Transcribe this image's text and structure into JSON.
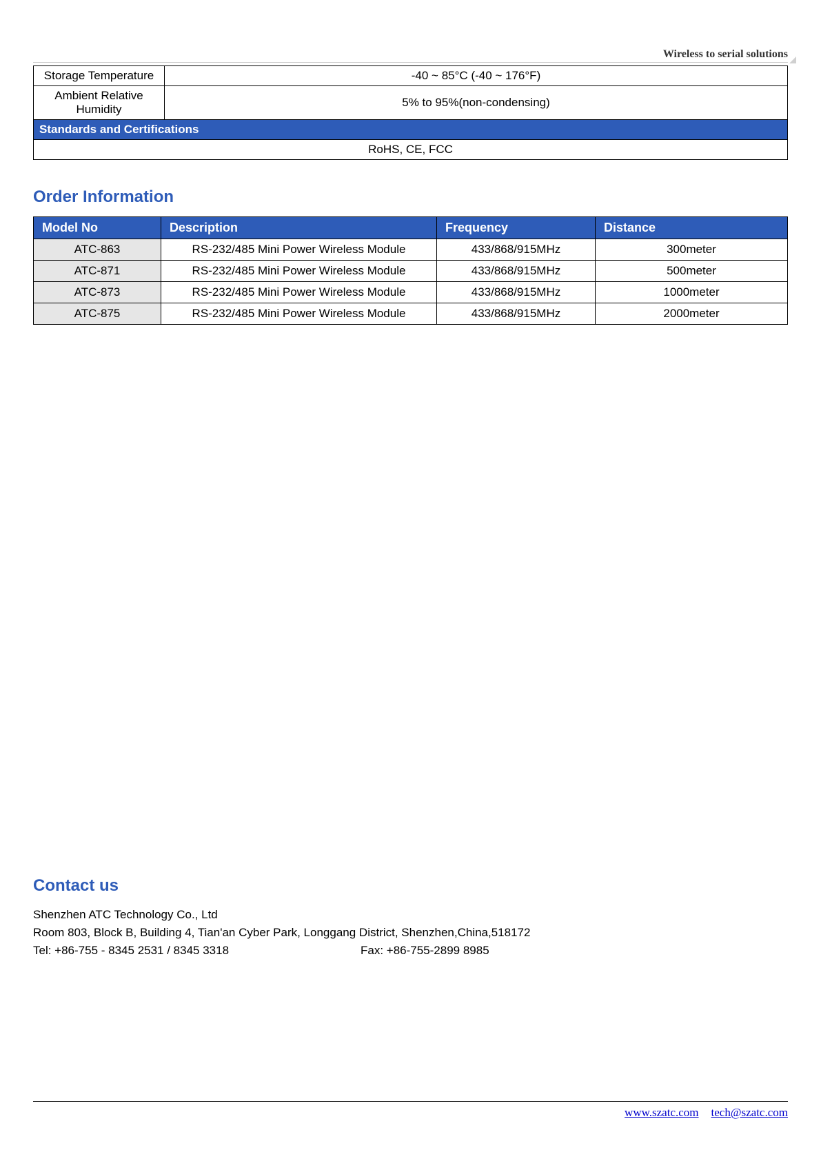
{
  "header": {
    "tagline": "Wireless to serial solutions"
  },
  "specTable": {
    "rows": [
      {
        "label": "Storage Temperature",
        "value": "-40 ~ 85°C (-40 ~ 176°F)"
      },
      {
        "label": "Ambient Relative Humidity",
        "value": "5% to 95%(non-condensing)"
      }
    ],
    "sectionHeader": "Standards and Certifications",
    "sectionValue": "RoHS, CE, FCC"
  },
  "orderSection": {
    "title": "Order Information",
    "columns": [
      "Model No",
      "Description",
      "Frequency",
      "Distance"
    ],
    "rows": [
      [
        "ATC-863",
        "RS-232/485 Mini Power Wireless Module",
        "433/868/915MHz",
        "300meter"
      ],
      [
        "ATC-871",
        "RS-232/485 Mini Power Wireless Module",
        "433/868/915MHz",
        "500meter"
      ],
      [
        "ATC-873",
        "RS-232/485 Mini Power Wireless Module",
        "433/868/915MHz",
        "1000meter"
      ],
      [
        "ATC-875",
        "RS-232/485 Mini Power Wireless Module",
        "433/868/915MHz",
        "2000meter"
      ]
    ]
  },
  "contact": {
    "title": "Contact us",
    "company": "Shenzhen ATC Technology Co., Ltd",
    "address": "Room 803, Block B, Building 4, Tian'an Cyber Park, Longgang District, Shenzhen,China,518172",
    "tel": "Tel: +86-755 - 8345 2531 / 8345 3318",
    "fax": "Fax: +86-755-2899 8985"
  },
  "footer": {
    "website": "www.szatc.com",
    "email": "tech@szatc.com"
  },
  "colors": {
    "primary": "#2e5cb8",
    "text": "#000000",
    "link": "#0000cc",
    "modelBg": "#e6e6e6",
    "border": "#000000"
  }
}
